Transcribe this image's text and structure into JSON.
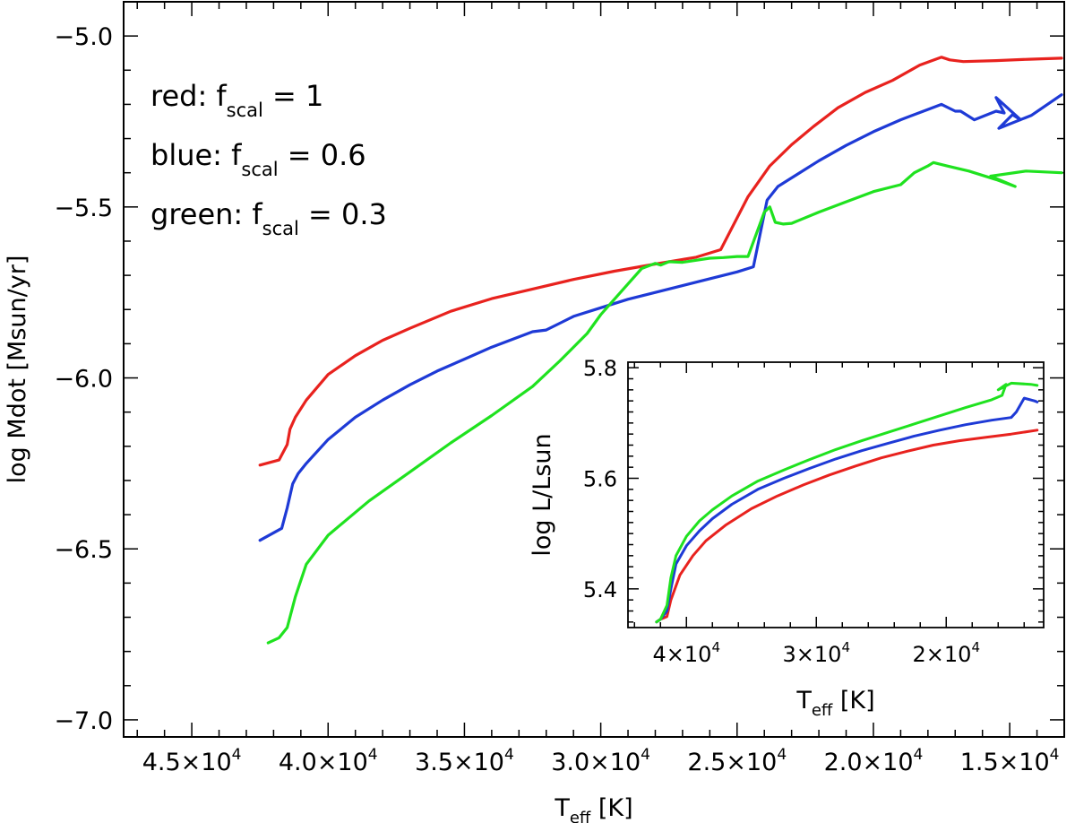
{
  "chart_data": [
    {
      "type": "line",
      "xlabel": "T",
      "xlabel_sub": "eff",
      "xlabel_unit": " [K]",
      "ylabel": "log Mdot [Msun/yr]",
      "xlim": [
        47500,
        13000
      ],
      "ylim": [
        -7.05,
        -4.9
      ],
      "x_ticks": [
        {
          "value": 45000,
          "mant": "4.5×10",
          "exp": "4"
        },
        {
          "value": 40000,
          "mant": "4.0×10",
          "exp": "4"
        },
        {
          "value": 35000,
          "mant": "3.5×10",
          "exp": "4"
        },
        {
          "value": 30000,
          "mant": "3.0×10",
          "exp": "4"
        },
        {
          "value": 25000,
          "mant": "2.5×10",
          "exp": "4"
        },
        {
          "value": 20000,
          "mant": "2.0×10",
          "exp": "4"
        },
        {
          "value": 15000,
          "mant": "1.5×10",
          "exp": "4"
        }
      ],
      "y_ticks": [
        {
          "value": -5.0,
          "label": "−5.0"
        },
        {
          "value": -5.5,
          "label": "−5.5"
        },
        {
          "value": -6.0,
          "label": "−6.0"
        },
        {
          "value": -6.5,
          "label": "−6.5"
        },
        {
          "value": -7.0,
          "label": "−7.0"
        }
      ],
      "legend": [
        {
          "prefix": "red: f",
          "sub": "scal",
          "suffix": " = 1"
        },
        {
          "prefix": "blue: f",
          "sub": "scal",
          "suffix": " = 0.6"
        },
        {
          "prefix": "green: f",
          "sub": "scal",
          "suffix": " = 0.3"
        }
      ],
      "series": [
        {
          "color": "#e8221e",
          "x": [
            42500,
            41800,
            41500,
            41400,
            41200,
            40800,
            40000,
            39000,
            38000,
            37000,
            35500,
            34000,
            32500,
            31000,
            29500,
            28000,
            26500,
            25600,
            24600,
            23800,
            23000,
            22200,
            21300,
            20300,
            19300,
            18300,
            17500,
            17200,
            16700,
            15500,
            14300,
            13100
          ],
          "y": [
            -6.255,
            -6.24,
            -6.195,
            -6.15,
            -6.115,
            -6.065,
            -5.99,
            -5.935,
            -5.89,
            -5.855,
            -5.805,
            -5.768,
            -5.74,
            -5.712,
            -5.688,
            -5.667,
            -5.647,
            -5.625,
            -5.47,
            -5.38,
            -5.318,
            -5.265,
            -5.21,
            -5.165,
            -5.13,
            -5.085,
            -5.062,
            -5.07,
            -5.075,
            -5.072,
            -5.068,
            -5.065
          ]
        },
        {
          "color": "#1e3ad6",
          "x": [
            42500,
            41700,
            41500,
            41300,
            41100,
            40800,
            40000,
            39000,
            38000,
            37000,
            36000,
            35000,
            34000,
            33000,
            32500,
            32000,
            31500,
            31000,
            30000,
            29000,
            28000,
            27000,
            26000,
            25000,
            24400,
            23900,
            23500,
            23000,
            22000,
            21000,
            20000,
            19000,
            18000,
            17500,
            17000,
            16800,
            16300,
            15500,
            15200,
            15500,
            14600,
            14900,
            15400,
            14200,
            13100
          ],
          "y": [
            -6.475,
            -6.44,
            -6.38,
            -6.31,
            -6.28,
            -6.25,
            -6.18,
            -6.115,
            -6.065,
            -6.02,
            -5.98,
            -5.945,
            -5.91,
            -5.88,
            -5.865,
            -5.86,
            -5.84,
            -5.82,
            -5.795,
            -5.77,
            -5.75,
            -5.73,
            -5.71,
            -5.69,
            -5.675,
            -5.48,
            -5.44,
            -5.415,
            -5.365,
            -5.32,
            -5.28,
            -5.245,
            -5.215,
            -5.2,
            -5.22,
            -5.22,
            -5.245,
            -5.22,
            -5.225,
            -5.18,
            -5.245,
            -5.23,
            -5.27,
            -5.232,
            -5.172
          ]
        },
        {
          "color": "#1fe21f",
          "x": [
            42200,
            41800,
            41500,
            41200,
            40800,
            40000,
            38500,
            37000,
            35500,
            34000,
            32500,
            31500,
            30500,
            30000,
            29500,
            29000,
            28500,
            28000,
            27800,
            27500,
            27000,
            26500,
            26000,
            25500,
            25000,
            24600,
            24000,
            23800,
            23600,
            23300,
            23000,
            22000,
            21000,
            20000,
            19000,
            18500,
            18000,
            17800,
            17300,
            16500,
            15500,
            14800,
            15700,
            14400,
            13100
          ],
          "y": [
            -6.775,
            -6.76,
            -6.73,
            -6.64,
            -6.545,
            -6.46,
            -6.36,
            -6.275,
            -6.19,
            -6.11,
            -6.025,
            -5.95,
            -5.87,
            -5.815,
            -5.77,
            -5.725,
            -5.68,
            -5.665,
            -5.67,
            -5.66,
            -5.662,
            -5.656,
            -5.65,
            -5.648,
            -5.645,
            -5.645,
            -5.515,
            -5.5,
            -5.545,
            -5.55,
            -5.548,
            -5.515,
            -5.485,
            -5.455,
            -5.435,
            -5.4,
            -5.38,
            -5.37,
            -5.38,
            -5.395,
            -5.42,
            -5.44,
            -5.41,
            -5.395,
            -5.4
          ]
        }
      ]
    },
    {
      "type": "line",
      "xlabel": "T",
      "xlabel_sub": "eff",
      "xlabel_unit": " [K]",
      "ylabel": "log L/Lsun",
      "xlim": [
        44500,
        12500
      ],
      "ylim": [
        5.33,
        5.81
      ],
      "x_ticks": [
        {
          "value": 40000,
          "mant": "4×10",
          "exp": "4"
        },
        {
          "value": 30000,
          "mant": "3×10",
          "exp": "4"
        },
        {
          "value": 20000,
          "mant": "2×10",
          "exp": "4"
        }
      ],
      "y_ticks": [
        {
          "value": 5.4,
          "label": "5.4"
        },
        {
          "value": 5.6,
          "label": "5.6"
        },
        {
          "value": 5.8,
          "label": "5.8"
        }
      ],
      "series": [
        {
          "color": "#e8221e",
          "x": [
            42300,
            42000,
            41500,
            41200,
            40500,
            39500,
            38500,
            37000,
            35000,
            33000,
            31000,
            29000,
            27000,
            25000,
            23000,
            21000,
            19000,
            17000,
            15000,
            13000
          ],
          "y": [
            5.34,
            5.345,
            5.35,
            5.38,
            5.425,
            5.46,
            5.487,
            5.515,
            5.545,
            5.568,
            5.588,
            5.606,
            5.622,
            5.637,
            5.649,
            5.66,
            5.668,
            5.674,
            5.68,
            5.687
          ]
        },
        {
          "color": "#1e3ad6",
          "x": [
            42300,
            42000,
            41500,
            41200,
            40800,
            40000,
            39000,
            38000,
            36500,
            34500,
            32500,
            30500,
            28500,
            26500,
            24500,
            22500,
            20500,
            18500,
            16500,
            15000,
            14600,
            14000,
            13200,
            13000
          ],
          "y": [
            5.34,
            5.345,
            5.36,
            5.4,
            5.445,
            5.478,
            5.505,
            5.527,
            5.553,
            5.58,
            5.6,
            5.618,
            5.635,
            5.65,
            5.663,
            5.676,
            5.687,
            5.697,
            5.705,
            5.71,
            5.72,
            5.745,
            5.74,
            5.738
          ]
        },
        {
          "color": "#1fe21f",
          "x": [
            42300,
            42000,
            41500,
            41200,
            40800,
            40000,
            39000,
            38000,
            36500,
            34500,
            32500,
            30500,
            28500,
            26500,
            24500,
            22500,
            20500,
            18500,
            16500,
            15700,
            15400,
            16000,
            15000,
            13500,
            13000
          ],
          "y": [
            5.34,
            5.345,
            5.37,
            5.42,
            5.46,
            5.495,
            5.523,
            5.543,
            5.568,
            5.595,
            5.615,
            5.634,
            5.652,
            5.668,
            5.683,
            5.698,
            5.713,
            5.728,
            5.742,
            5.75,
            5.77,
            5.76,
            5.772,
            5.77,
            5.768
          ]
        }
      ]
    }
  ]
}
